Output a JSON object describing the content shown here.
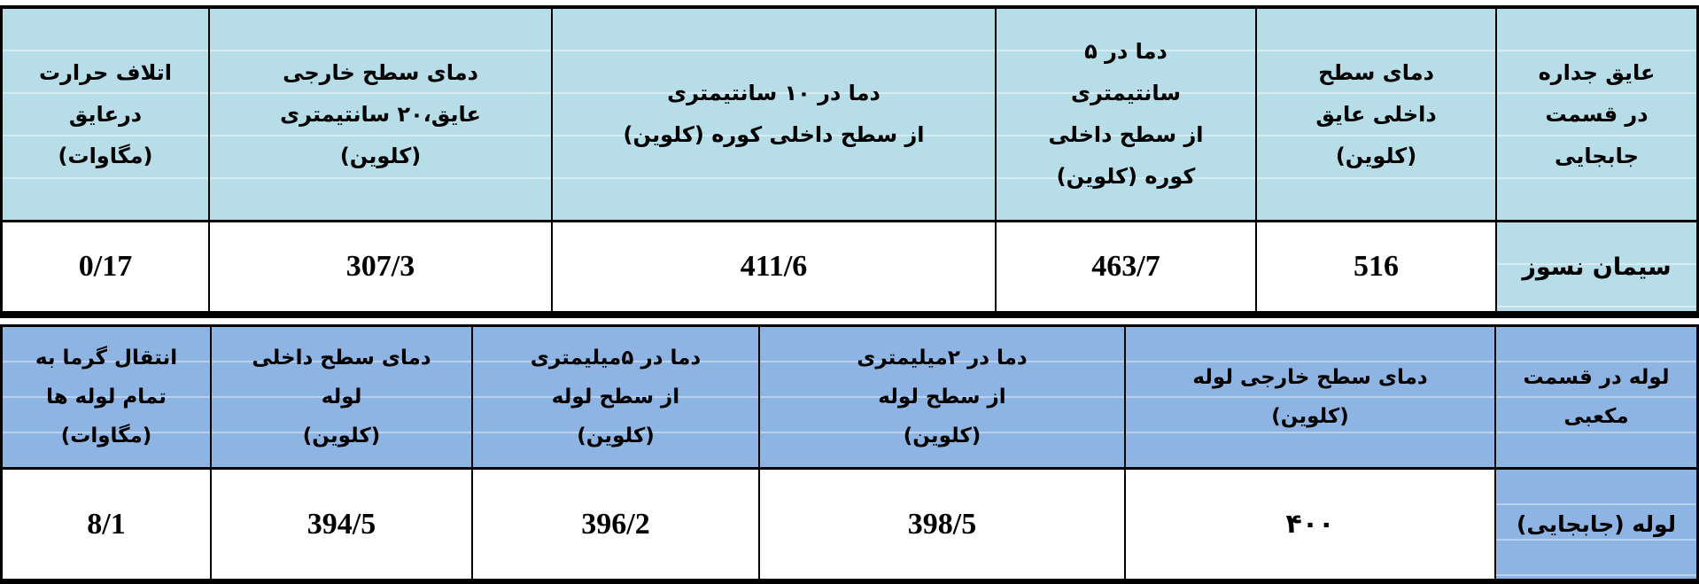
{
  "colors": {
    "table1_header_bg": "#b6dde8",
    "table2_header_bg": "#8db4e2",
    "grid_border": "#000000",
    "value_bg": "#ffffff"
  },
  "tables": [
    {
      "name": "wall-insulation-convection-section",
      "columns": [
        {
          "header": "اتلاف حرارت\nدرعایق\n(مگاوات)",
          "value": "0/17"
        },
        {
          "header": "دمای سطح خارجی\nعایق،۲۰ سانتیمتری\n(کلوین)",
          "value": "307/3"
        },
        {
          "header": "دما در ۱۰ سانتیمتری\nاز سطح داخلی کوره (کلوین)",
          "value": "411/6"
        },
        {
          "header": "دما در ۵\nسانتیمتری\nاز سطح داخلی\nکوره (کلوین)",
          "value": "463/7"
        },
        {
          "header": "دمای سطح\nداخلی عایق\n(کلوین)",
          "value": "516"
        },
        {
          "header": "عایق جداره\nدر قسمت\nجابجایی",
          "value": "سیمان نسوز"
        }
      ]
    },
    {
      "name": "pipe-cubic-section",
      "columns": [
        {
          "header": "انتقال گرما به\nتمام لوله ها\n(مگاوات)",
          "value": "8/1"
        },
        {
          "header": "دمای سطح داخلی\nلوله\n(کلوین)",
          "value": "394/5"
        },
        {
          "header": "دما در ۵میلیمتری\nاز سطح لوله\n(کلوین)",
          "value": "396/2"
        },
        {
          "header": "دما در ۲میلیمتری\nاز سطح لوله\n(کلوین)",
          "value": "398/5"
        },
        {
          "header": "دمای سطح خارجی  لوله\n(کلوین)",
          "value": "۴۰۰"
        },
        {
          "header": "لوله در قسمت\nمکعبی",
          "value": "لوله (جابجایی)"
        }
      ]
    }
  ]
}
